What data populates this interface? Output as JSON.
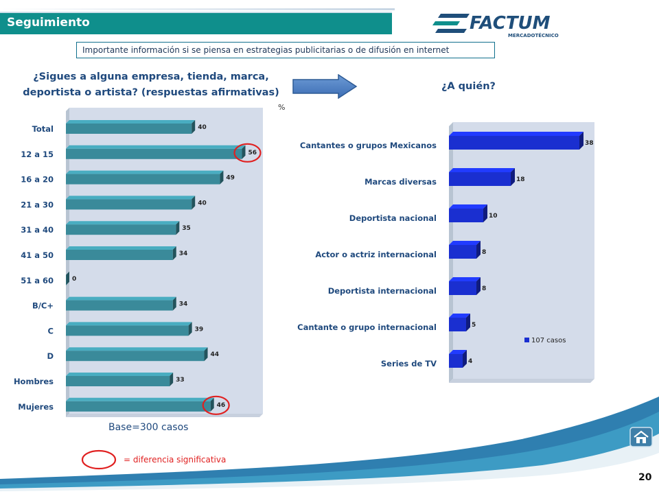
{
  "header": {
    "title": "Seguimiento"
  },
  "logo": {
    "text": "FACTUM",
    "subtext": "MERCADOTÉCNICO"
  },
  "info_box": "Importante información si se piensa en estrategias publicitarias o de difusión en internet",
  "left_chart_title_line1": "¿Sigues a alguna empresa, tienda, marca,",
  "left_chart_title_line2": "deportista o artista? (respuestas afirmativas)",
  "right_chart_title": "¿A quién?",
  "percent_label": "%",
  "base_note": "Base=300 casos",
  "legend_text": "= diferencia significativa",
  "page_number": "20",
  "colors": {
    "teal_bar": "#3a8a9a",
    "blue_bar": "#1a2fd0",
    "header": "#0f8f8c",
    "highlight": "#e02020",
    "title": "#1f497d"
  },
  "icons": {
    "home": "home-icon",
    "arrow": "right-arrow-icon"
  },
  "chart_data": [
    {
      "type": "bar",
      "orientation": "horizontal",
      "categories": [
        "Total",
        "12 a 15",
        "16 a 20",
        "21 a 30",
        "31 a 40",
        "41 a 50",
        "51 a 60",
        "B/C+",
        "C",
        "D",
        "Hombres",
        "Mujeres"
      ],
      "values": [
        40,
        56,
        49,
        40,
        35,
        34,
        0,
        34,
        39,
        44,
        33,
        46
      ],
      "highlighted": [
        "12 a 15",
        "Mujeres"
      ],
      "xlim": [
        0,
        60
      ]
    },
    {
      "type": "bar",
      "orientation": "horizontal",
      "categories": [
        "Cantantes o grupos Mexicanos",
        "Marcas diversas",
        "Deportista nacional",
        "Actor o actriz internacional",
        "Deportista internacional",
        "Cantante o grupo internacional",
        "Series de TV"
      ],
      "series": [
        {
          "name": "107 casos",
          "values": [
            38,
            18,
            10,
            8,
            8,
            5,
            4
          ]
        }
      ],
      "legend_position": "bottom-right",
      "xlim": [
        0,
        40
      ]
    }
  ]
}
